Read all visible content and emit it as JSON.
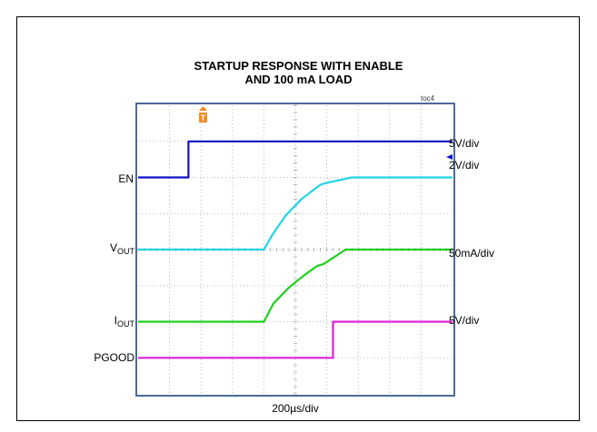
{
  "chart_data": {
    "type": "line",
    "title_line1": "STARTUP RESPONSE WITH ENABLE",
    "title_line2": "AND 100 mA LOAD",
    "figure_tag": "toc4",
    "xlabel": "200µs/div",
    "trigger_marker": "T",
    "grid": true,
    "x_divisions": 10,
    "y_divisions": 8,
    "series": [
      {
        "name": "EN",
        "color": "#1010c8",
        "scale": "5V/div",
        "x": [
          0,
          1.6,
          1.6,
          10
        ],
        "level_div": [
          6.0,
          6.0,
          7.0,
          7.0
        ]
      },
      {
        "name": "V",
        "subscript": "OUT",
        "color": "#22d4e6",
        "scale": "2V/div",
        "x": [
          0,
          4.0,
          4.3,
          4.7,
          5.2,
          5.8,
          6.0,
          6.8,
          10
        ],
        "level_div": [
          4.0,
          4.0,
          4.45,
          4.95,
          5.4,
          5.8,
          5.85,
          6.0,
          6.0
        ]
      },
      {
        "name": "I",
        "subscript": "OUT",
        "color": "#1ed01e",
        "scale": "50mA/div",
        "x": [
          0,
          4.0,
          4.3,
          4.8,
          5.3,
          5.7,
          5.9,
          6.6,
          10
        ],
        "level_div": [
          2.0,
          2.0,
          2.5,
          2.95,
          3.3,
          3.55,
          3.6,
          4.0,
          4.0
        ]
      },
      {
        "name": "PGOOD",
        "color": "#e020d8",
        "scale": "5V/div",
        "x": [
          0,
          6.2,
          6.2,
          10
        ],
        "level_div": [
          1.0,
          1.0,
          2.0,
          2.0
        ]
      }
    ]
  }
}
